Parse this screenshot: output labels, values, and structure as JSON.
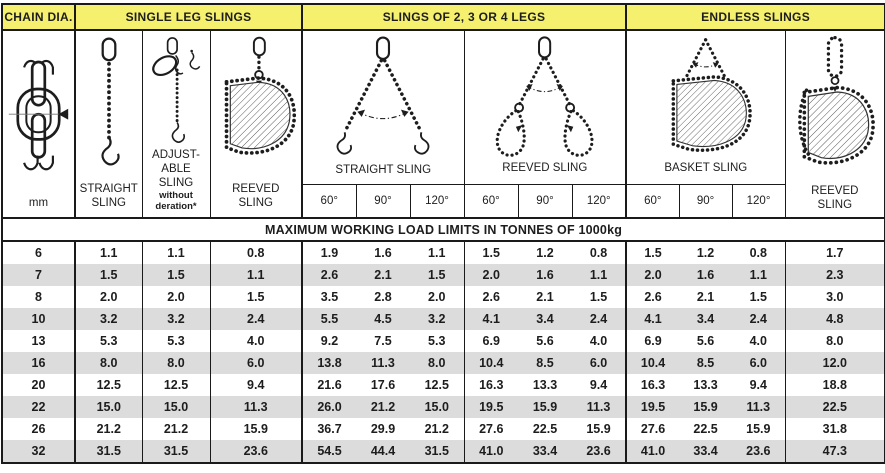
{
  "table": {
    "chain_dia_header": "CHAIN DIA.",
    "unit": "mm",
    "title_banner": "MAXIMUM WORKING LOAD LIMITS IN TONNES OF 1000kg",
    "sections": {
      "single_leg": {
        "title": "SINGLE LEG SLINGS",
        "columns": [
          {
            "label": "STRAIGHT SLING"
          },
          {
            "label": "ADJUST-ABLE SLING",
            "note": "without deration*"
          },
          {
            "label": "REEVED SLING"
          }
        ]
      },
      "multi_leg": {
        "title": "SLINGS OF 2, 3 OR 4 LEGS",
        "groups": [
          {
            "label": "STRAIGHT SLING",
            "angles": [
              "60°",
              "90°",
              "120°"
            ]
          },
          {
            "label": "REEVED SLING",
            "angles": [
              "60°",
              "90°",
              "120°"
            ]
          }
        ]
      },
      "endless": {
        "title": "ENDLESS SLINGS",
        "groups": [
          {
            "label": "BASKET SLING",
            "angles": [
              "60°",
              "90°",
              "120°"
            ]
          },
          {
            "label": "REEVED SLING"
          }
        ]
      }
    },
    "rows": [
      {
        "mm": "6",
        "values": [
          "1.1",
          "1.1",
          "0.8",
          "1.9",
          "1.6",
          "1.1",
          "1.5",
          "1.2",
          "0.8",
          "1.5",
          "1.2",
          "0.8",
          "1.7"
        ]
      },
      {
        "mm": "7",
        "values": [
          "1.5",
          "1.5",
          "1.1",
          "2.6",
          "2.1",
          "1.5",
          "2.0",
          "1.6",
          "1.1",
          "2.0",
          "1.6",
          "1.1",
          "2.3"
        ]
      },
      {
        "mm": "8",
        "values": [
          "2.0",
          "2.0",
          "1.5",
          "3.5",
          "2.8",
          "2.0",
          "2.6",
          "2.1",
          "1.5",
          "2.6",
          "2.1",
          "1.5",
          "3.0"
        ]
      },
      {
        "mm": "10",
        "values": [
          "3.2",
          "3.2",
          "2.4",
          "5.5",
          "4.5",
          "3.2",
          "4.1",
          "3.4",
          "2.4",
          "4.1",
          "3.4",
          "2.4",
          "4.8"
        ]
      },
      {
        "mm": "13",
        "values": [
          "5.3",
          "5.3",
          "4.0",
          "9.2",
          "7.5",
          "5.3",
          "6.9",
          "5.6",
          "4.0",
          "6.9",
          "5.6",
          "4.0",
          "8.0"
        ]
      },
      {
        "mm": "16",
        "values": [
          "8.0",
          "8.0",
          "6.0",
          "13.8",
          "11.3",
          "8.0",
          "10.4",
          "8.5",
          "6.0",
          "10.4",
          "8.5",
          "6.0",
          "12.0"
        ]
      },
      {
        "mm": "20",
        "values": [
          "12.5",
          "12.5",
          "9.4",
          "21.6",
          "17.6",
          "12.5",
          "16.3",
          "13.3",
          "9.4",
          "16.3",
          "13.3",
          "9.4",
          "18.8"
        ]
      },
      {
        "mm": "22",
        "values": [
          "15.0",
          "15.0",
          "11.3",
          "26.0",
          "21.2",
          "15.0",
          "19.5",
          "15.9",
          "11.3",
          "19.5",
          "15.9",
          "11.3",
          "22.5"
        ]
      },
      {
        "mm": "26",
        "values": [
          "21.2",
          "21.2",
          "15.9",
          "36.7",
          "29.9",
          "21.2",
          "27.6",
          "22.5",
          "15.9",
          "27.6",
          "22.5",
          "15.9",
          "31.8"
        ]
      },
      {
        "mm": "32",
        "values": [
          "31.5",
          "31.5",
          "23.6",
          "54.5",
          "44.4",
          "31.5",
          "41.0",
          "33.4",
          "23.6",
          "41.0",
          "33.4",
          "23.6",
          "47.3"
        ]
      }
    ]
  },
  "colors": {
    "header_yellow": "#F5F06E",
    "stripe_gray": "#DCDCDC",
    "border_black": "#1a1a1a"
  }
}
